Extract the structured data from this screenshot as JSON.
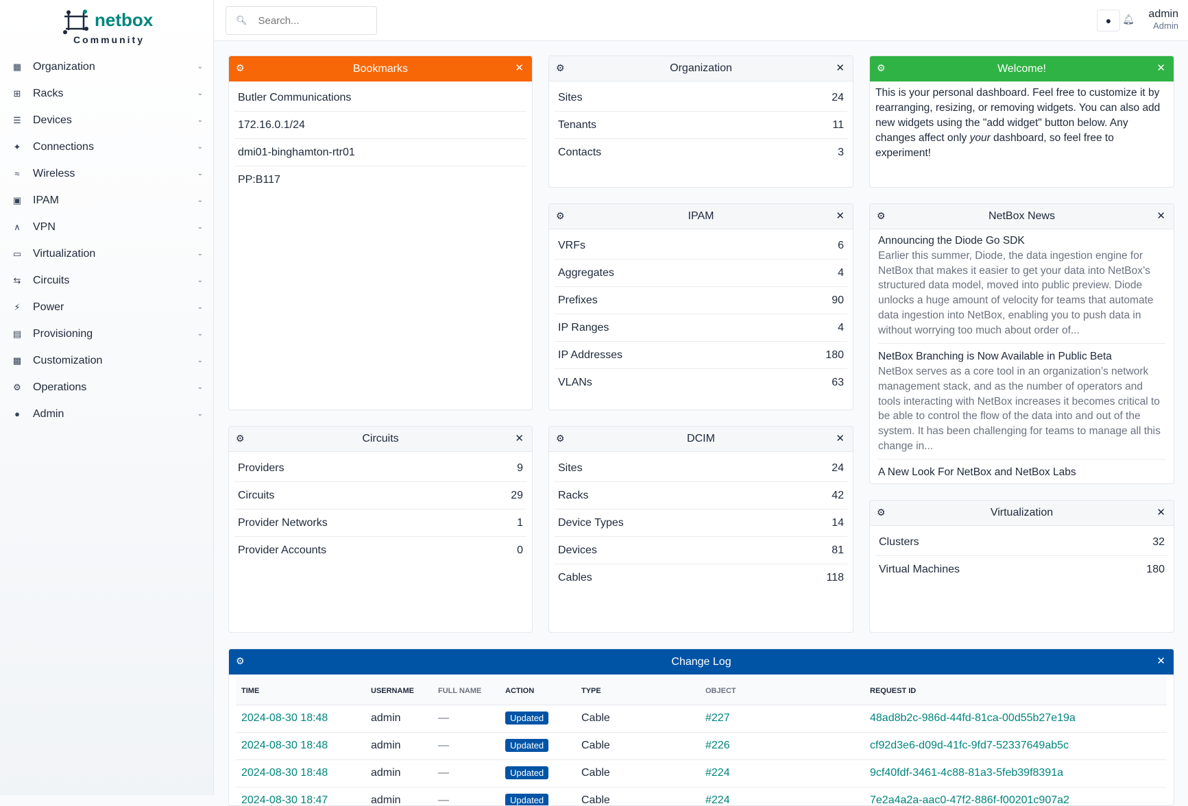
{
  "brand": {
    "name": "netbox",
    "edition": "Community",
    "color": "#00857d"
  },
  "sidebar": {
    "items": [
      {
        "label": "Organization",
        "icon": "building-icon"
      },
      {
        "label": "Racks",
        "icon": "rack-icon"
      },
      {
        "label": "Devices",
        "icon": "server-icon"
      },
      {
        "label": "Connections",
        "icon": "plug-icon"
      },
      {
        "label": "Wireless",
        "icon": "wifi-icon"
      },
      {
        "label": "IPAM",
        "icon": "ip-icon"
      },
      {
        "label": "VPN",
        "icon": "vpn-icon"
      },
      {
        "label": "Virtualization",
        "icon": "monitor-icon"
      },
      {
        "label": "Circuits",
        "icon": "circuit-icon"
      },
      {
        "label": "Power",
        "icon": "lightning-icon"
      },
      {
        "label": "Provisioning",
        "icon": "document-icon"
      },
      {
        "label": "Customization",
        "icon": "toolbox-icon"
      },
      {
        "label": "Operations",
        "icon": "cogs-icon"
      },
      {
        "label": "Admin",
        "icon": "users-icon"
      }
    ]
  },
  "topbar": {
    "search_placeholder": "Search...",
    "user": {
      "name": "admin",
      "role": "Admin"
    }
  },
  "widgets": {
    "bookmarks": {
      "title": "Bookmarks",
      "color": "#f76707",
      "items": [
        "Butler Communications",
        "172.16.0.1/24",
        "dmi01-binghamton-rtr01",
        "PP:B117"
      ]
    },
    "organization": {
      "title": "Organization",
      "rows": [
        {
          "label": "Sites",
          "value": "24"
        },
        {
          "label": "Tenants",
          "value": "11"
        },
        {
          "label": "Contacts",
          "value": "3"
        }
      ]
    },
    "welcome": {
      "title": "Welcome!",
      "color": "#2fb344",
      "text_1": "This is your personal dashboard. Feel free to customize it by rearranging, resizing, or removing widgets. You can also add new widgets using the \"add widget\" button below. Any changes affect only ",
      "text_em": "your",
      "text_2": " dashboard, so feel free to experiment!"
    },
    "ipam": {
      "title": "IPAM",
      "rows": [
        {
          "label": "VRFs",
          "value": "6"
        },
        {
          "label": "Aggregates",
          "value": "4"
        },
        {
          "label": "Prefixes",
          "value": "90"
        },
        {
          "label": "IP Ranges",
          "value": "4"
        },
        {
          "label": "IP Addresses",
          "value": "180"
        },
        {
          "label": "VLANs",
          "value": "63"
        }
      ]
    },
    "news": {
      "title": "NetBox News",
      "items": [
        {
          "title": "Announcing the Diode Go SDK",
          "body": "Earlier this summer, Diode, the data ingestion engine for NetBox that makes it easier to get your data into NetBox’s structured data model, moved into public preview. Diode unlocks a huge amount of velocity for teams that automate data ingestion into NetBox, enabling you to push data in without worrying too much about order of..."
        },
        {
          "title": "NetBox Branching is Now Available in Public Beta",
          "body": "NetBox serves as a core tool in an organization’s network management stack, and as the number of operators and tools interacting with NetBox increases it becomes critical to be able to control the flow of the data into and out of the system. It has been challenging for teams to manage all this change in..."
        },
        {
          "title": "A New Look For NetBox and NetBox Labs",
          "body": ""
        }
      ]
    },
    "circuits": {
      "title": "Circuits",
      "rows": [
        {
          "label": "Providers",
          "value": "9"
        },
        {
          "label": "Circuits",
          "value": "29"
        },
        {
          "label": "Provider Networks",
          "value": "1"
        },
        {
          "label": "Provider Accounts",
          "value": "0"
        }
      ]
    },
    "dcim": {
      "title": "DCIM",
      "rows": [
        {
          "label": "Sites",
          "value": "24"
        },
        {
          "label": "Racks",
          "value": "42"
        },
        {
          "label": "Device Types",
          "value": "14"
        },
        {
          "label": "Devices",
          "value": "81"
        },
        {
          "label": "Cables",
          "value": "118"
        }
      ]
    },
    "virtualization": {
      "title": "Virtualization",
      "rows": [
        {
          "label": "Clusters",
          "value": "32"
        },
        {
          "label": "Virtual Machines",
          "value": "180"
        }
      ]
    },
    "changelog": {
      "title": "Change Log",
      "color": "#0054a6",
      "columns": [
        "TIME",
        "USERNAME",
        "FULL NAME",
        "ACTION",
        "TYPE",
        "OBJECT",
        "REQUEST ID"
      ],
      "rows": [
        {
          "time": "2024-08-30 18:48",
          "username": "admin",
          "full_name": "—",
          "action": "Updated",
          "type": "Cable",
          "object": "#227",
          "request_id": "48ad8b2c-986d-44fd-81ca-00d55b27e19a"
        },
        {
          "time": "2024-08-30 18:48",
          "username": "admin",
          "full_name": "—",
          "action": "Updated",
          "type": "Cable",
          "object": "#226",
          "request_id": "cf92d3e6-d09d-41fc-9fd7-52337649ab5c"
        },
        {
          "time": "2024-08-30 18:48",
          "username": "admin",
          "full_name": "—",
          "action": "Updated",
          "type": "Cable",
          "object": "#224",
          "request_id": "9cf40fdf-3461-4c88-81a3-5feb39f8391a"
        },
        {
          "time": "2024-08-30 18:47",
          "username": "admin",
          "full_name": "—",
          "action": "Updated",
          "type": "Cable",
          "object": "#224",
          "request_id": "7e2a4a2a-aac0-47f2-886f-f00201c907a2"
        }
      ]
    }
  }
}
